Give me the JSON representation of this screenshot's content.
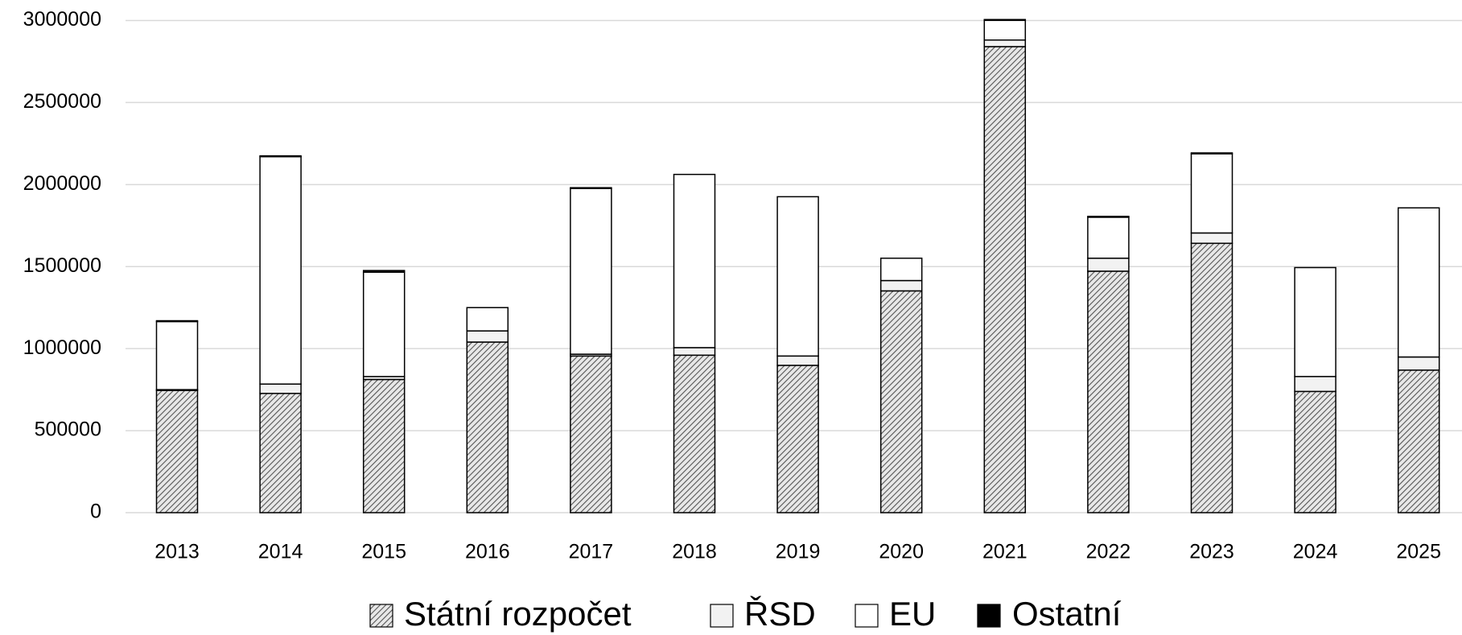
{
  "chart_data": {
    "type": "stacked_bar",
    "categories": [
      "2013",
      "2014",
      "2015",
      "2016",
      "2017",
      "2018",
      "2019",
      "2020",
      "2021",
      "2022",
      "2023",
      "2024",
      "2025"
    ],
    "series": [
      {
        "name": "Státní rozpočet",
        "color": "#bfbfbf",
        "hatch": true,
        "values": [
          745000,
          727000,
          812000,
          1040000,
          955000,
          960000,
          898000,
          1352000,
          2841000,
          1472000,
          1642000,
          739000,
          869000
        ]
      },
      {
        "name": "ŘSD",
        "color": "#f2f2f2",
        "values": [
          5000,
          57000,
          18000,
          68000,
          11000,
          46000,
          57000,
          63000,
          40000,
          79000,
          63000,
          91000,
          80000
        ]
      },
      {
        "name": "EU",
        "color": "#ffffff",
        "values": [
          415000,
          1386000,
          636000,
          142000,
          1010000,
          1056000,
          971000,
          136000,
          120000,
          250000,
          483000,
          664000,
          909000
        ]
      },
      {
        "name": "Ostatní",
        "color": "#000000",
        "values": [
          5000,
          5000,
          10000,
          0,
          5000,
          0,
          0,
          0,
          5000,
          5000,
          5000,
          0,
          0
        ]
      }
    ],
    "ylim": [
      0,
      3000000
    ],
    "yticks": [
      0,
      500000,
      1000000,
      1500000,
      2000000,
      2500000,
      3000000
    ],
    "grid": true,
    "legend": "bottom"
  }
}
